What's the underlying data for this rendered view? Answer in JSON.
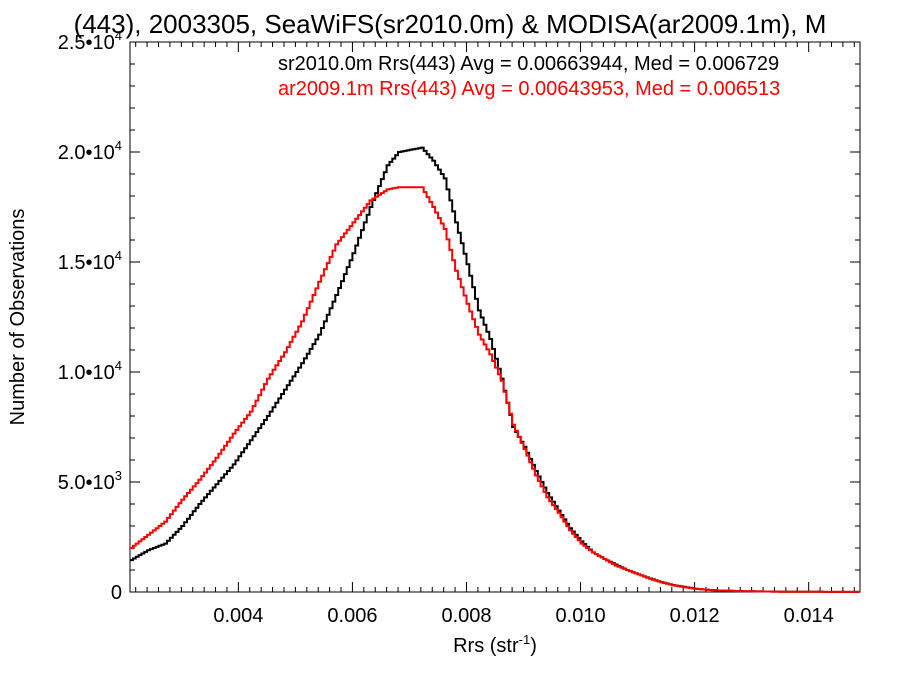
{
  "chart_data": {
    "type": "line",
    "title": "(443), 2003305, SeaWiFS(sr2010.0m) & MODISA(ar2009.1m), M",
    "xlabel": "Rrs (str",
    "xlabel_sup": "-1",
    "xlabel_close": ")",
    "ylabel": "Number of Observations",
    "xlim": [
      0.0021,
      0.0149
    ],
    "ylim": [
      0,
      25000
    ],
    "x_ticks": [
      0.004,
      0.006,
      0.008,
      0.01,
      0.012,
      0.014
    ],
    "x_tick_labels": [
      "0.004",
      "0.006",
      "0.008",
      "0.010",
      "0.012",
      "0.014"
    ],
    "y_ticks": [
      0,
      5000,
      10000,
      15000,
      20000,
      25000
    ],
    "y_tick_labels": [
      {
        "base": "0",
        "exp": ""
      },
      {
        "base": "5.0•10",
        "exp": "3"
      },
      {
        "base": "1.0•10",
        "exp": "4"
      },
      {
        "base": "1.5•10",
        "exp": "4"
      },
      {
        "base": "2.0•10",
        "exp": "4"
      },
      {
        "base": "2.5•10",
        "exp": "4"
      }
    ],
    "legend_position": "top-right",
    "series": [
      {
        "name": "sr2010.0m Rrs(443) Avg = 0.00663944, Med = 0.006729",
        "color": "#000000",
        "x": [
          0.0021,
          0.0024,
          0.0027,
          0.003,
          0.0033,
          0.0036,
          0.0039,
          0.0042,
          0.0045,
          0.0048,
          0.0051,
          0.0054,
          0.0057,
          0.006,
          0.0063,
          0.0066,
          0.0068,
          0.007,
          0.0072,
          0.0074,
          0.0076,
          0.0078,
          0.008,
          0.0082,
          0.0084,
          0.0086,
          0.0088,
          0.009,
          0.0092,
          0.0094,
          0.0096,
          0.0098,
          0.01,
          0.0102,
          0.0104,
          0.0106,
          0.0108,
          0.011,
          0.0112,
          0.0114,
          0.0116,
          0.0118,
          0.012,
          0.0122,
          0.0124,
          0.0127,
          0.013,
          0.0135,
          0.014,
          0.0149
        ],
        "y": [
          1450,
          1900,
          2200,
          3000,
          4000,
          4900,
          5800,
          6900,
          8000,
          9200,
          10400,
          11700,
          13500,
          15400,
          17500,
          19400,
          20000,
          20100,
          20200,
          19600,
          18800,
          16800,
          14900,
          12800,
          11500,
          9700,
          7500,
          6600,
          5500,
          4500,
          3700,
          2900,
          2300,
          1800,
          1500,
          1250,
          1000,
          800,
          620,
          450,
          320,
          230,
          150,
          100,
          70,
          45,
          30,
          15,
          8,
          3
        ]
      },
      {
        "name": "ar2009.1m Rrs(443) Avg = 0.00643953, Med = 0.006513",
        "color": "#ff0000",
        "x": [
          0.0021,
          0.0024,
          0.0027,
          0.003,
          0.0033,
          0.0036,
          0.0039,
          0.0042,
          0.0045,
          0.0048,
          0.0051,
          0.0054,
          0.0057,
          0.006,
          0.0063,
          0.0066,
          0.0068,
          0.007,
          0.0072,
          0.0074,
          0.0076,
          0.0078,
          0.008,
          0.0082,
          0.0084,
          0.0086,
          0.0088,
          0.009,
          0.0092,
          0.0094,
          0.0096,
          0.0098,
          0.01,
          0.0102,
          0.0104,
          0.0106,
          0.0108,
          0.011,
          0.0112,
          0.0114,
          0.0116,
          0.0118,
          0.012,
          0.0122,
          0.0124,
          0.0127,
          0.013,
          0.0135,
          0.014,
          0.0149
        ],
        "y": [
          2000,
          2600,
          3200,
          4200,
          5100,
          6100,
          7200,
          8200,
          9700,
          10900,
          12300,
          14100,
          15800,
          16800,
          17800,
          18300,
          18400,
          18400,
          18400,
          17500,
          16500,
          14600,
          13100,
          11700,
          10800,
          9600,
          7600,
          6500,
          5300,
          4300,
          3600,
          2800,
          2200,
          1800,
          1500,
          1200,
          1000,
          800,
          600,
          440,
          310,
          220,
          150,
          100,
          70,
          45,
          30,
          15,
          8,
          3
        ]
      }
    ]
  }
}
